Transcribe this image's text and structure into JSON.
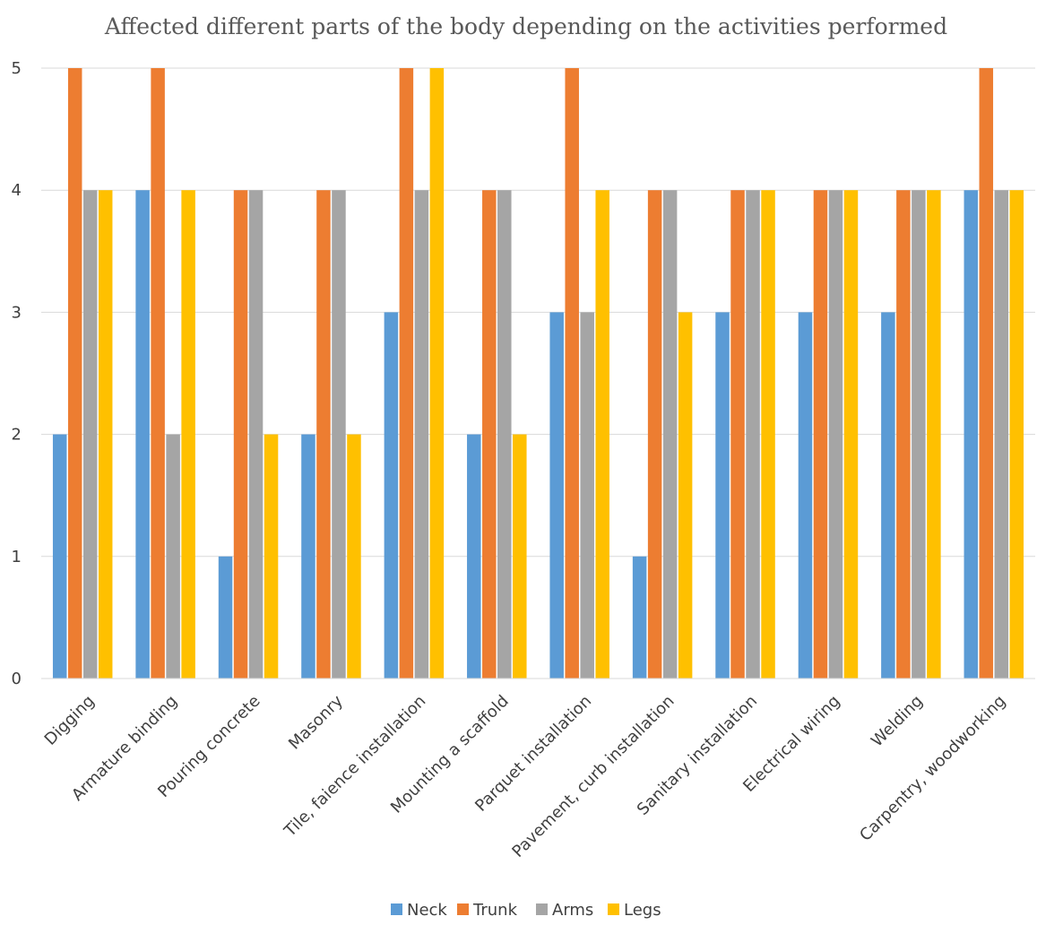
{
  "chart_data": {
    "type": "bar",
    "title": "Affected different parts of the body depending on the activities performed",
    "xlabel": "",
    "ylabel": "",
    "ylim": [
      0,
      5
    ],
    "yticks": [
      0,
      1,
      2,
      3,
      4,
      5
    ],
    "grid": true,
    "legend_position": "bottom",
    "categories": [
      "Digging",
      "Armature binding",
      "Pouring concrete",
      "Masonry",
      "Tile, faience installation",
      "Mounting a scaffold",
      "Parquet installation",
      "Pavement, curb installation",
      "Sanitary installation",
      "Electrical wiring",
      "Welding",
      "Carpentry, woodworking"
    ],
    "series": [
      {
        "name": "Neck",
        "color": "#5B9BD5",
        "values": [
          2,
          4,
          1,
          2,
          3,
          2,
          3,
          1,
          3,
          3,
          3,
          4
        ]
      },
      {
        "name": "Trunk",
        "color": "#ED7D31",
        "values": [
          5,
          5,
          4,
          4,
          5,
          4,
          5,
          4,
          4,
          4,
          4,
          5
        ]
      },
      {
        "name": "Arms",
        "color": "#A5A5A5",
        "values": [
          4,
          2,
          4,
          4,
          4,
          4,
          3,
          4,
          4,
          4,
          4,
          4
        ]
      },
      {
        "name": "Legs",
        "color": "#FFC000",
        "values": [
          4,
          4,
          2,
          2,
          5,
          2,
          4,
          3,
          4,
          4,
          4,
          4
        ]
      }
    ]
  }
}
